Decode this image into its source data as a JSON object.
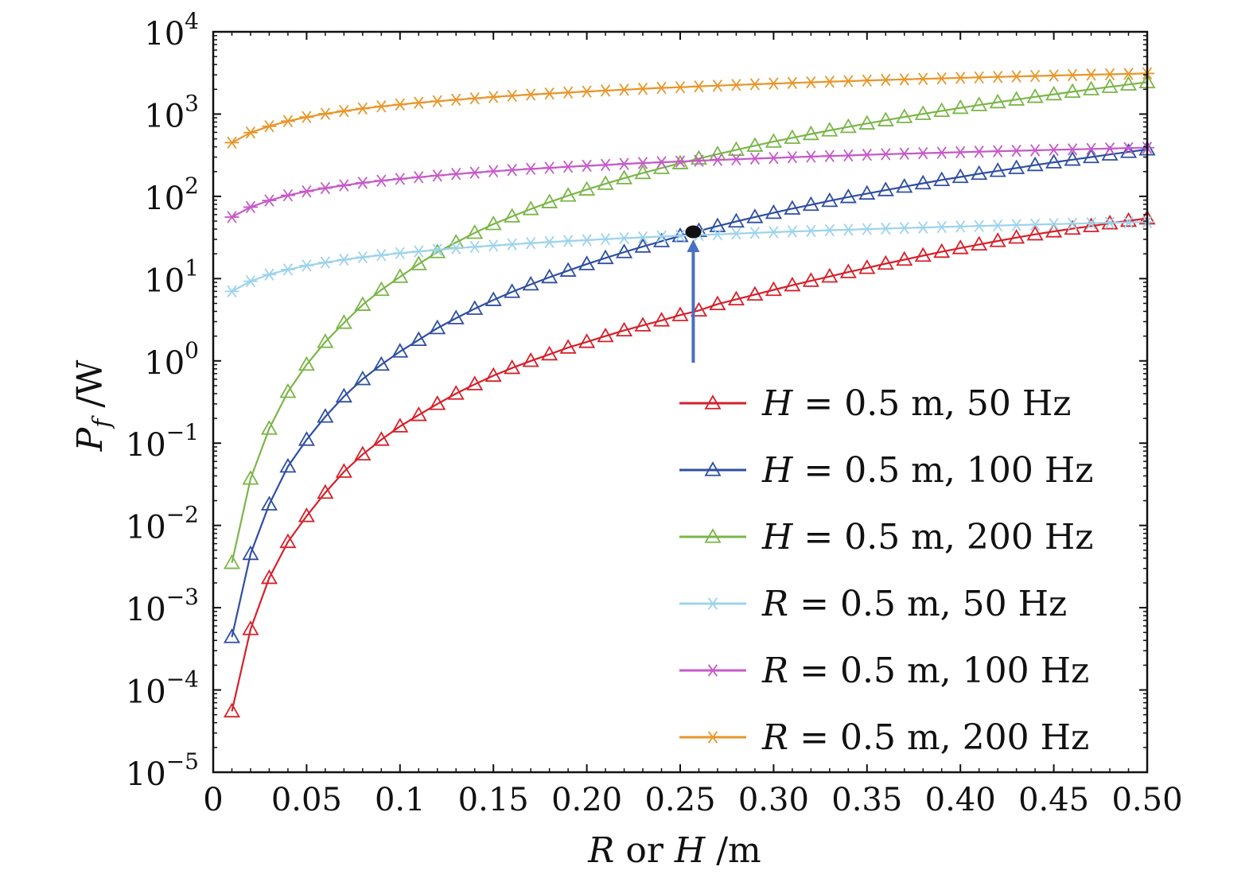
{
  "chart_data": {
    "type": "line",
    "title": "",
    "xlabel": {
      "var1": "R",
      "mid": " or ",
      "var2": "H",
      "unit": " /m"
    },
    "ylabel": {
      "var": "P",
      "sub": "f",
      "unit": " /W"
    },
    "xlim": [
      0,
      0.5
    ],
    "ylim": [
      1e-05,
      10000.0
    ],
    "yscale": "log",
    "grid": false,
    "legend_position": "bottom-right",
    "xticks": [
      0,
      0.05,
      0.1,
      0.15,
      0.2,
      0.25,
      0.3,
      0.35,
      0.4,
      0.45,
      0.5
    ],
    "xtick_labels": [
      "0",
      "0.05",
      "0.1",
      "0.15",
      "0.20",
      "0.25",
      "0.30",
      "0.35",
      "0.40",
      "0.45",
      "0.50"
    ],
    "yticks": [
      1e-05,
      0.0001,
      0.001,
      0.01,
      0.1,
      1.0,
      10.0,
      100.0,
      1000.0,
      10000.0
    ],
    "ytick_labels": [
      {
        "base": "10",
        "exp": "−5"
      },
      {
        "base": "10",
        "exp": "−4"
      },
      {
        "base": "10",
        "exp": "−3"
      },
      {
        "base": "10",
        "exp": "−2"
      },
      {
        "base": "10",
        "exp": "−1"
      },
      {
        "base": "10",
        "exp": "0"
      },
      {
        "base": "10",
        "exp": "1"
      },
      {
        "base": "10",
        "exp": "2"
      },
      {
        "base": "10",
        "exp": "3"
      },
      {
        "base": "10",
        "exp": "4"
      }
    ],
    "x": [
      0.01,
      0.02,
      0.03,
      0.04,
      0.05,
      0.06,
      0.07,
      0.08,
      0.09,
      0.1,
      0.11,
      0.12,
      0.13,
      0.14,
      0.15,
      0.16,
      0.17,
      0.18,
      0.19,
      0.2,
      0.21,
      0.22,
      0.23,
      0.24,
      0.25,
      0.26,
      0.27,
      0.28,
      0.29,
      0.3,
      0.31,
      0.32,
      0.33,
      0.34,
      0.35,
      0.36,
      0.37,
      0.38,
      0.39,
      0.4,
      0.41,
      0.42,
      0.43,
      0.44,
      0.45,
      0.46,
      0.47,
      0.48,
      0.49,
      0.5
    ],
    "series": [
      {
        "name": "H = 0.5 m, 50 Hz",
        "legend": {
          "var": "H",
          "rest": " = 0.5 m, 50 Hz"
        },
        "color": "#d6202a",
        "marker": "triangle",
        "values": [
          5.5e-05,
          0.00055,
          0.0023,
          0.0063,
          0.013,
          0.025,
          0.045,
          0.073,
          0.11,
          0.16,
          0.22,
          0.3,
          0.4,
          0.52,
          0.66,
          0.82,
          1.0,
          1.2,
          1.45,
          1.7,
          2.0,
          2.35,
          2.7,
          3.1,
          3.6,
          4.1,
          4.9,
          5.6,
          6.4,
          7.3,
          8.3,
          9.4,
          10.6,
          12.0,
          13.5,
          15.2,
          17.0,
          19.0,
          21.2,
          23.5,
          26.0,
          28.7,
          31.5,
          34.5,
          37.5,
          40.5,
          43.5,
          47.0,
          50.5,
          54.0
        ]
      },
      {
        "name": "H = 0.5 m, 100 Hz",
        "legend": {
          "var": "H",
          "rest": " = 0.5 m, 100 Hz"
        },
        "color": "#2f4fa0",
        "marker": "triangle",
        "values": [
          0.00044,
          0.0045,
          0.018,
          0.052,
          0.11,
          0.21,
          0.37,
          0.6,
          0.9,
          1.3,
          1.8,
          2.5,
          3.3,
          4.3,
          5.5,
          6.9,
          8.5,
          10.4,
          12.5,
          15.0,
          17.8,
          21.0,
          24.5,
          28.5,
          33.0,
          38.0,
          43.5,
          49.5,
          56.0,
          63.0,
          71.0,
          79.0,
          88.0,
          98.0,
          108.0,
          119.0,
          131.0,
          144.0,
          158.0,
          172.0,
          188.0,
          204.0,
          221.0,
          240.0,
          259.0,
          279.0,
          300.0,
          323.0,
          347.0,
          372.0
        ]
      },
      {
        "name": "H = 0.5 m, 200 Hz",
        "legend": {
          "var": "H",
          "rest": " = 0.5 m, 200 Hz"
        },
        "color": "#7ab648",
        "marker": "triangle",
        "values": [
          0.0035,
          0.037,
          0.15,
          0.42,
          0.9,
          1.7,
          2.9,
          4.8,
          7.3,
          10.5,
          15.0,
          21.0,
          27.5,
          36.0,
          46.0,
          57.0,
          70.0,
          85.0,
          102.0,
          121.0,
          142.0,
          166.0,
          192.0,
          221.0,
          253.0,
          288.0,
          326.0,
          368.0,
          413.0,
          462.0,
          515.0,
          572.0,
          633.0,
          698.0,
          768.0,
          842.0,
          921.0,
          1005.0,
          1094.0,
          1188.0,
          1287.0,
          1392.0,
          1502.0,
          1618.0,
          1740.0,
          1868.0,
          2002.0,
          2142.0,
          2288.0,
          2441.0
        ]
      },
      {
        "name": "R = 0.5 m, 50 Hz",
        "legend": {
          "var": "R",
          "rest": " = 0.5 m, 50 Hz"
        },
        "color": "#9dd3ec",
        "marker": "asterisk",
        "values": [
          7.0,
          9.3,
          11.2,
          12.9,
          14.4,
          15.7,
          17.0,
          18.2,
          19.3,
          20.4,
          21.4,
          22.4,
          23.4,
          24.3,
          25.2,
          26.1,
          27.0,
          27.8,
          28.6,
          29.4,
          30.2,
          31.0,
          31.7,
          32.5,
          33.2,
          33.9,
          34.6,
          35.3,
          36.0,
          36.7,
          37.4,
          38.0,
          38.7,
          39.3,
          40.0,
          40.6,
          41.2,
          41.8,
          42.4,
          43.0,
          43.6,
          44.2,
          44.8,
          45.4,
          46.0,
          46.5,
          47.1,
          47.7,
          48.2,
          48.8
        ]
      },
      {
        "name": "R = 0.5 m, 100 Hz",
        "legend": {
          "var": "R",
          "rest": " = 0.5 m, 100 Hz"
        },
        "color": "#c55ac8",
        "marker": "asterisk",
        "values": [
          56.0,
          74.0,
          89.0,
          103.0,
          115.0,
          126.0,
          136.0,
          146.0,
          155.0,
          163.0,
          171.0,
          179.0,
          187.0,
          194.0,
          202.0,
          209.0,
          216.0,
          222.0,
          229.0,
          235.0,
          241.0,
          248.0,
          254.0,
          260.0,
          265.0,
          271.0,
          277.0,
          282.0,
          288.0,
          293.0,
          299.0,
          304.0,
          309.0,
          314.0,
          320.0,
          325.0,
          330.0,
          335.0,
          339.0,
          344.0,
          349.0,
          354.0,
          358.0,
          363.0,
          368.0,
          372.0,
          377.0,
          381.0,
          386.0,
          390.0
        ]
      },
      {
        "name": "R = 0.5 m, 200 Hz",
        "legend": {
          "var": "R",
          "rest": " = 0.5 m, 200 Hz"
        },
        "color": "#e8962a",
        "marker": "asterisk",
        "values": [
          450.0,
          595.0,
          712.0,
          822.0,
          920.0,
          1008.0,
          1090.0,
          1168.0,
          1240.0,
          1308.0,
          1372.0,
          1434.0,
          1494.0,
          1552.0,
          1614.0,
          1670.0,
          1725.0,
          1777.0,
          1829.0,
          1880.0,
          1930.0,
          1980.0,
          2030.0,
          2080.0,
          2120.0,
          2170.0,
          2215.0,
          2260.0,
          2305.0,
          2350.0,
          2392.0,
          2434.0,
          2475.0,
          2516.0,
          2560.0,
          2600.0,
          2640.0,
          2680.0,
          2715.0,
          2755.0,
          2792.0,
          2830.0,
          2866.0,
          2903.0,
          2940.0,
          2976.0,
          3012.0,
          3047.0,
          3083.0,
          3120.0
        ]
      }
    ],
    "annotations": [
      {
        "type": "point",
        "x": 0.257,
        "y": 37,
        "color": "#111111"
      },
      {
        "type": "arrow",
        "x": 0.257,
        "y_from": 0.95,
        "y_to": 30,
        "color": "#4a6fc2"
      }
    ]
  }
}
